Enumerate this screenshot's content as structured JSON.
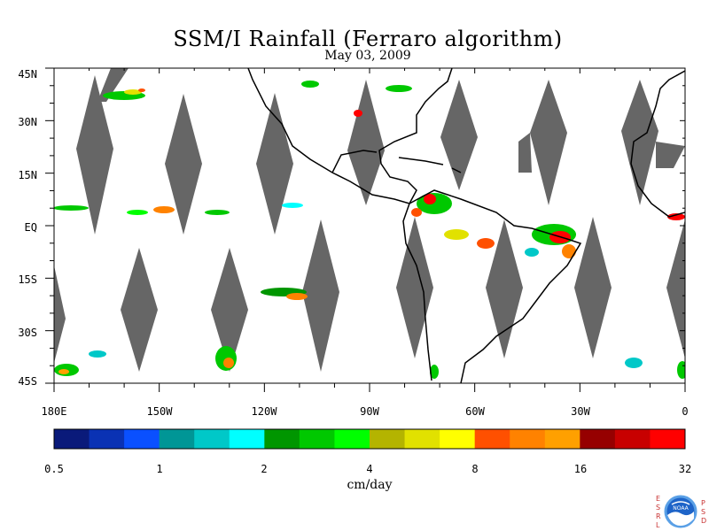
{
  "title": "SSM/I Rainfall (Ferraro algorithm)",
  "subtitle": "May 03, 2009",
  "map": {
    "lat_labels": [
      "45N",
      "30N",
      "15N",
      "EQ",
      "15S",
      "30S",
      "45S"
    ],
    "lon_labels": [
      "180E",
      "150W",
      "120W",
      "90W",
      "60W",
      "30W",
      "0"
    ],
    "lat_range": [
      -45,
      45
    ],
    "lon_range": [
      -180,
      0
    ],
    "no_data_color": "#666666",
    "coastline_color": "#000000"
  },
  "colorbar": {
    "units": "cm/day",
    "tick_labels": [
      "0.5",
      "1",
      "2",
      "4",
      "8",
      "16",
      "32"
    ],
    "colors": [
      "#0a1a7a",
      "#0a32b4",
      "#0a50ff",
      "#009696",
      "#00c8c8",
      "#00ffff",
      "#009600",
      "#00c800",
      "#00ff00",
      "#b4b400",
      "#e1e100",
      "#ffff00",
      "#ff5000",
      "#ff8200",
      "#ffa000",
      "#960000",
      "#c80000",
      "#ff0000"
    ]
  },
  "logo": {
    "left_letters": "ESRL",
    "right_letters": "PSD",
    "emblem_text": "NOAA"
  }
}
